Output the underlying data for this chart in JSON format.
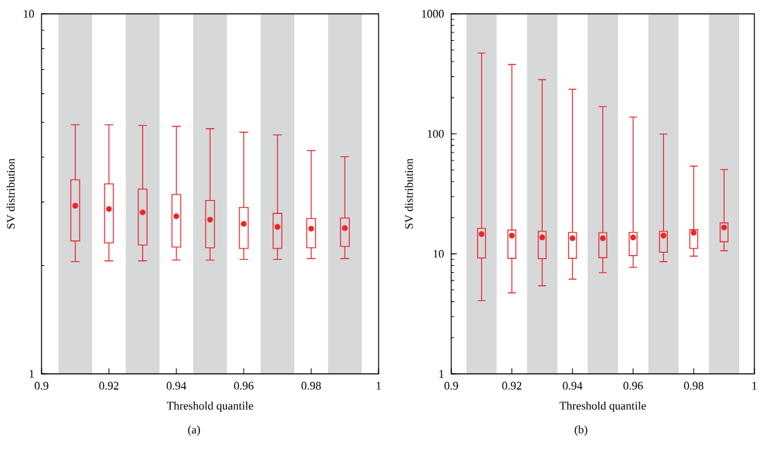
{
  "chart_data": [
    {
      "type": "box",
      "xlabel": "Threshold quantile",
      "ylabel": "SV distribution",
      "annotations": [
        "(a)"
      ],
      "log": "y",
      "marker": "circle",
      "color": "#e8262a",
      "x": [
        0.91,
        0.92,
        0.93,
        0.94,
        0.95,
        0.96,
        0.97,
        0.98,
        0.99
      ],
      "xlim": [
        0.9,
        1
      ],
      "xticks": [
        0.9,
        0.92,
        0.94,
        0.96,
        0.98,
        1
      ],
      "ylim": [
        1,
        10
      ],
      "yticks": [
        1,
        10
      ],
      "bands": [
        {
          "axis": "x",
          "from": 0.905,
          "to": 0.915,
          "color": "#d7d8da"
        },
        {
          "axis": "x",
          "from": 0.925,
          "to": 0.935,
          "color": "#d7d8da"
        },
        {
          "axis": "x",
          "from": 0.945,
          "to": 0.955,
          "color": "#d7d8da"
        },
        {
          "axis": "x",
          "from": 0.965,
          "to": 0.975,
          "color": "#d7d8da"
        },
        {
          "axis": "x",
          "from": 0.985,
          "to": 0.995,
          "color": "#d7d8da"
        }
      ],
      "boxes": [
        {
          "low": 2.05,
          "q1": 2.34,
          "q3": 3.46,
          "high": 4.92,
          "mean": 2.93
        },
        {
          "low": 2.06,
          "q1": 2.31,
          "q3": 3.37,
          "high": 4.92,
          "mean": 2.87
        },
        {
          "low": 2.06,
          "q1": 2.28,
          "q3": 3.26,
          "high": 4.9,
          "mean": 2.81
        },
        {
          "low": 2.07,
          "q1": 2.25,
          "q3": 3.15,
          "high": 4.87,
          "mean": 2.74
        },
        {
          "low": 2.07,
          "q1": 2.24,
          "q3": 3.03,
          "high": 4.8,
          "mean": 2.68
        },
        {
          "low": 2.08,
          "q1": 2.23,
          "q3": 2.9,
          "high": 4.69,
          "mean": 2.61
        },
        {
          "low": 2.08,
          "q1": 2.23,
          "q3": 2.79,
          "high": 4.61,
          "mean": 2.56
        },
        {
          "low": 2.09,
          "q1": 2.24,
          "q3": 2.7,
          "high": 4.17,
          "mean": 2.53
        },
        {
          "low": 2.09,
          "q1": 2.26,
          "q3": 2.71,
          "high": 4.01,
          "mean": 2.54
        }
      ]
    },
    {
      "type": "box",
      "xlabel": "Threshold quantile",
      "ylabel": "SV distribution",
      "annotations": [
        "(b)"
      ],
      "log": "y",
      "marker": "circle",
      "color": "#e8262a",
      "x": [
        0.91,
        0.92,
        0.93,
        0.94,
        0.95,
        0.96,
        0.97,
        0.98,
        0.99
      ],
      "xlim": [
        0.9,
        1
      ],
      "xticks": [
        0.9,
        0.92,
        0.94,
        0.96,
        0.98,
        1
      ],
      "ylim": [
        1,
        1000
      ],
      "yticks": [
        1,
        10,
        100,
        1000
      ],
      "bands": [
        {
          "axis": "x",
          "from": 0.905,
          "to": 0.915,
          "color": "#d7d8da"
        },
        {
          "axis": "x",
          "from": 0.925,
          "to": 0.935,
          "color": "#d7d8da"
        },
        {
          "axis": "x",
          "from": 0.945,
          "to": 0.955,
          "color": "#d7d8da"
        },
        {
          "axis": "x",
          "from": 0.965,
          "to": 0.975,
          "color": "#d7d8da"
        },
        {
          "axis": "x",
          "from": 0.985,
          "to": 0.995,
          "color": "#d7d8da"
        }
      ],
      "boxes": [
        {
          "low": 4.07,
          "q1": 9.23,
          "q3": 16.3,
          "high": 471,
          "mean": 14.6
        },
        {
          "low": 4.73,
          "q1": 9.16,
          "q3": 15.8,
          "high": 378,
          "mean": 14.2
        },
        {
          "low": 5.42,
          "q1": 9.11,
          "q3": 15.4,
          "high": 283,
          "mean": 13.7
        },
        {
          "low": 6.15,
          "q1": 9.16,
          "q3": 15.1,
          "high": 235,
          "mean": 13.5
        },
        {
          "low": 6.96,
          "q1": 9.28,
          "q3": 15.0,
          "high": 169,
          "mean": 13.5
        },
        {
          "low": 7.73,
          "q1": 9.66,
          "q3": 15.1,
          "high": 138,
          "mean": 13.7
        },
        {
          "low": 8.6,
          "q1": 10.3,
          "q3": 15.4,
          "high": 99.5,
          "mean": 14.2
        },
        {
          "low": 9.57,
          "q1": 11.1,
          "q3": 15.9,
          "high": 53.8,
          "mean": 15.0
        },
        {
          "low": 10.6,
          "q1": 12.6,
          "q3": 18.1,
          "high": 50.4,
          "mean": 16.6
        }
      ]
    }
  ]
}
